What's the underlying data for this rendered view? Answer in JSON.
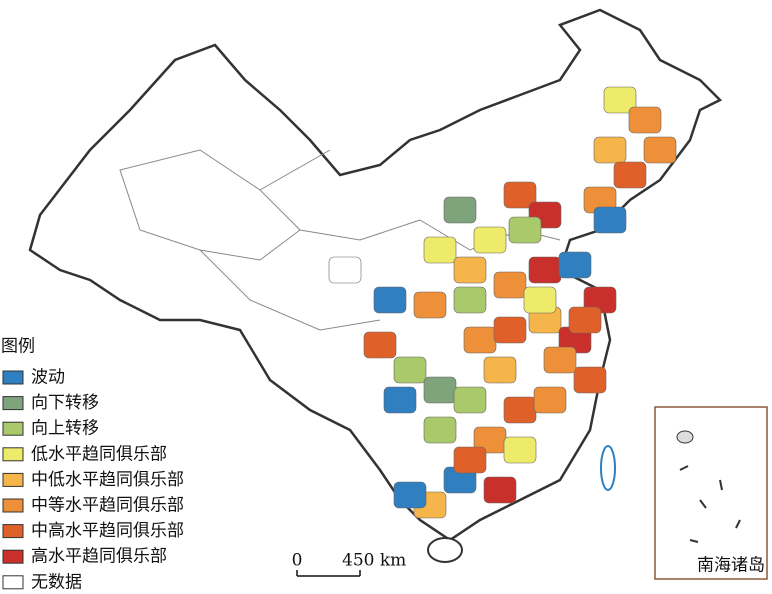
{
  "legend": {
    "title": "图例",
    "items": [
      {
        "label": "波动",
        "color": "#2f7fc1"
      },
      {
        "label": "向下转移",
        "color": "#7fa37a"
      },
      {
        "label": "向上转移",
        "color": "#a9c96a"
      },
      {
        "label": "低水平趋同俱乐部",
        "color": "#eeea6a"
      },
      {
        "label": "中低水平趋同俱乐部",
        "color": "#f5b54a"
      },
      {
        "label": "中等水平趋同俱乐部",
        "color": "#ee8f3a"
      },
      {
        "label": "中高水平趋同俱乐部",
        "color": "#e0602a"
      },
      {
        "label": "高水平趋同俱乐部",
        "color": "#c9302c"
      },
      {
        "label": "无数据",
        "color": "#ffffff"
      }
    ]
  },
  "scale_bar": {
    "start": "0",
    "end": "450 km"
  },
  "inset": {
    "label": "南海诸岛"
  }
}
